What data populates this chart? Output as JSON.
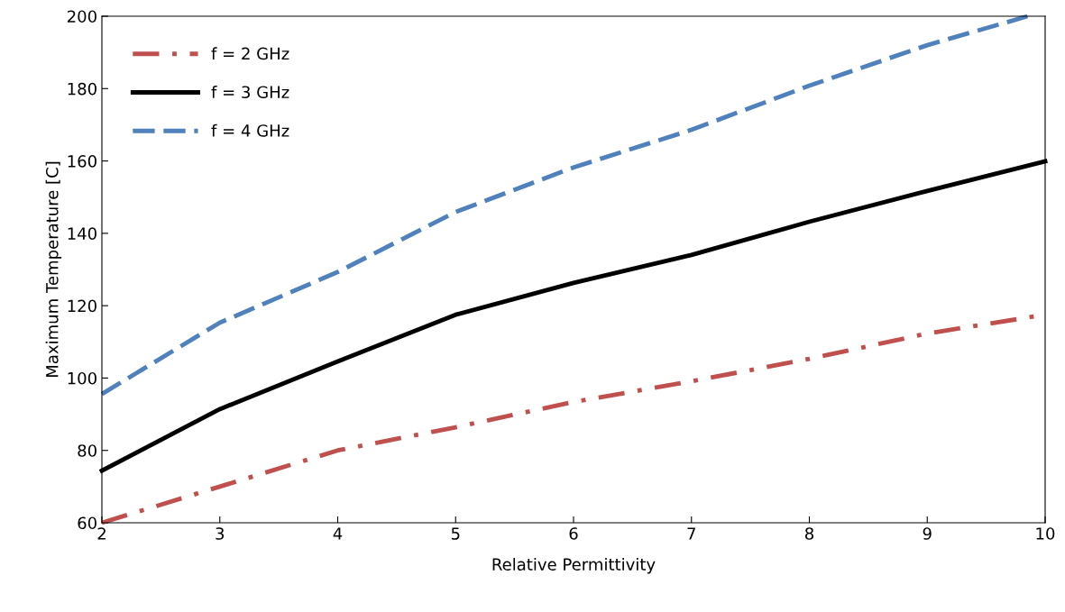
{
  "chart_data": {
    "type": "line",
    "xlabel": "Relative Permittivity",
    "ylabel": "Maximum Temperature [C]",
    "x": [
      2,
      3,
      4,
      5,
      6,
      7,
      8,
      9,
      10
    ],
    "series": [
      {
        "name": "f = 2 GHz",
        "color": "#c0504d",
        "line_style": "dashdot",
        "values": [
          60,
          70,
          80,
          86.4,
          93.4,
          99.1,
          105.3,
          112.3,
          117.5
        ]
      },
      {
        "name": "f = 3 GHz",
        "color": "#000000",
        "line_style": "solid",
        "values": [
          74.4,
          91.4,
          104.6,
          117.5,
          126.3,
          134,
          143.2,
          151.7,
          159.9
        ]
      },
      {
        "name": "f = 4 GHz",
        "color": "#4f81bd",
        "line_style": "dashed",
        "x": [
          2,
          3,
          4,
          5,
          6,
          7,
          8,
          9,
          9.85
        ],
        "values": [
          95.6,
          115.3,
          129.3,
          145.9,
          158.2,
          168.6,
          180.8,
          192,
          200
        ]
      }
    ],
    "xlim": [
      2,
      10
    ],
    "xticks": [
      2,
      3,
      4,
      5,
      6,
      7,
      8,
      9,
      10
    ],
    "ylim": [
      60,
      200
    ],
    "yticks": [
      60,
      80,
      100,
      120,
      140,
      160,
      180,
      200
    ],
    "grid": false,
    "legend": "top left",
    "marker": "none"
  }
}
